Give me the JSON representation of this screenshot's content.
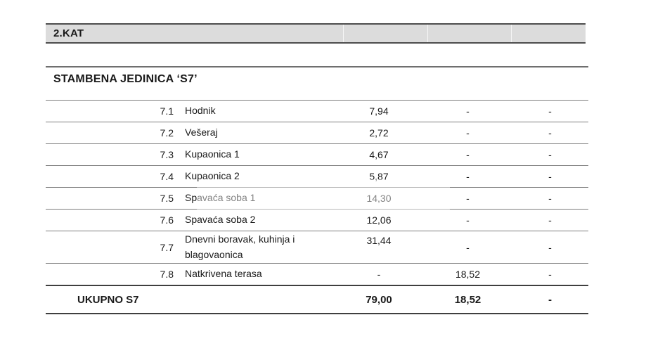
{
  "header": {
    "floor_label": "2.KAT"
  },
  "section": {
    "title": "STAMBENA JEDINICA  ‘S7’"
  },
  "table": {
    "rows": [
      {
        "num": "7.1",
        "name": "Hodnik",
        "values": [
          "7,94",
          "-",
          "-"
        ]
      },
      {
        "num": "7.2",
        "name": "Vešeraj",
        "values": [
          "2,72",
          "-",
          "-"
        ]
      },
      {
        "num": "7.3",
        "name": "Kupaonica 1",
        "values": [
          "4,67",
          "-",
          "-"
        ]
      },
      {
        "num": "7.4",
        "name": "Kupaonica 2",
        "values": [
          "5,87",
          "-",
          "-"
        ]
      },
      {
        "num": "7.5",
        "name": "Spavaća soba 1",
        "values": [
          "14,30",
          "-",
          "-"
        ]
      },
      {
        "num": "7.6",
        "name": "Spavaća soba 2",
        "values": [
          "12,06",
          "-",
          "-"
        ]
      },
      {
        "num": "7.7",
        "name": "Dnevni boravak, kuhinja i blagovaonica",
        "values": [
          "31,44",
          "-",
          "-"
        ]
      },
      {
        "num": "7.8",
        "name": "Natkrivena terasa",
        "values": [
          "-",
          "18,52",
          "-"
        ]
      }
    ],
    "total": {
      "label": "UKUPNO S7",
      "values": [
        "79,00",
        "18,52",
        "-"
      ]
    }
  },
  "colors": {
    "header_bar_bg": "#dcdcdc",
    "header_bar_border": "#4d4d4d",
    "row_line": "#7d7d7d",
    "total_line": "#3f3f3f",
    "text": "#1a1a1a"
  }
}
